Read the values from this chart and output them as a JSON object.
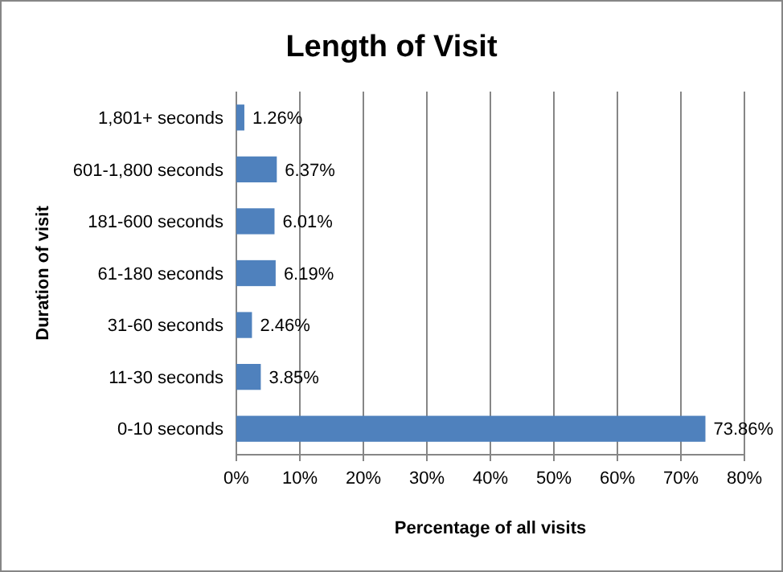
{
  "chart_data": {
    "type": "bar",
    "orientation": "horizontal",
    "title": "Length of Visit",
    "xlabel": "Percentage of all visits",
    "ylabel": "Duration of visit",
    "categories": [
      "1,801+ seconds",
      "601-1,800 seconds",
      "181-600 seconds",
      "61-180 seconds",
      "31-60 seconds",
      "11-30 seconds",
      "0-10 seconds"
    ],
    "values": [
      1.26,
      6.37,
      6.01,
      6.19,
      2.46,
      3.85,
      73.86
    ],
    "value_labels": [
      "1.26%",
      "6.37%",
      "6.01%",
      "6.19%",
      "2.46%",
      "3.85%",
      "73.86%"
    ],
    "color": "#4f81bd",
    "xlim": [
      0,
      80
    ],
    "xticks": [
      {
        "value": 0,
        "label": "0%"
      },
      {
        "value": 10,
        "label": "10%"
      },
      {
        "value": 20,
        "label": "20%"
      },
      {
        "value": 30,
        "label": "30%"
      },
      {
        "value": 40,
        "label": "40%"
      },
      {
        "value": 50,
        "label": "50%"
      },
      {
        "value": 60,
        "label": "60%"
      },
      {
        "value": 70,
        "label": "70%"
      },
      {
        "value": 80,
        "label": "80%"
      }
    ],
    "grid": "x"
  }
}
